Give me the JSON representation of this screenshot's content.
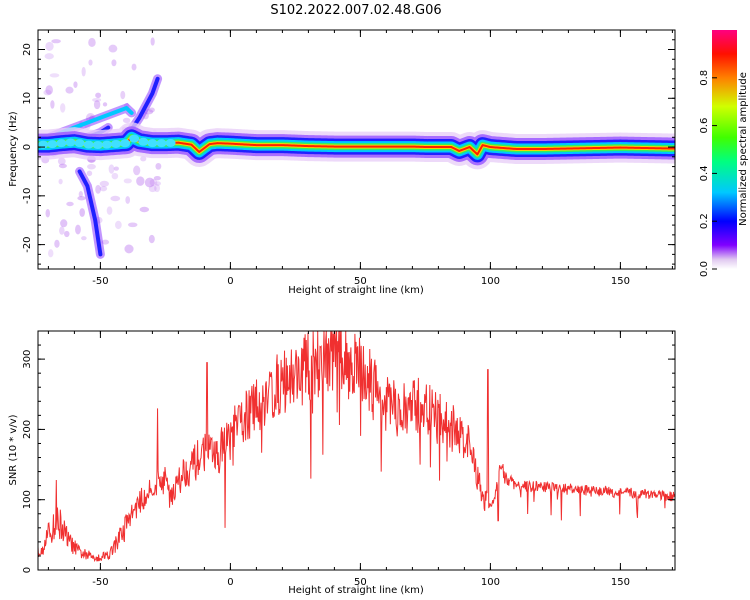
{
  "title": "S102.2022.007.02.48.G06",
  "chart_data": [
    {
      "type": "heatmap",
      "xlabel": "Height of straight line (km)",
      "ylabel": "Frequency (Hz)",
      "xlim": [
        -74,
        171
      ],
      "ylim": [
        -25,
        24
      ],
      "xticks": [
        -50,
        0,
        50,
        100,
        150
      ],
      "yticks": [
        -20,
        -10,
        0,
        10,
        20
      ],
      "colorbar": {
        "label": "Normalized spectral amplitude",
        "ticks": [
          "0.0",
          "0.2",
          "0.4",
          "0.6",
          "0.8"
        ],
        "range": [
          0,
          1
        ]
      },
      "ridge": {
        "x": [
          -74,
          -70,
          -65,
          -60,
          -55,
          -50,
          -45,
          -40,
          -38,
          -35,
          -30,
          -25,
          -20,
          -15,
          -12,
          -8,
          -5,
          0,
          10,
          20,
          30,
          40,
          50,
          60,
          70,
          76,
          80,
          85,
          88,
          92,
          95,
          97,
          100,
          110,
          120,
          130,
          140,
          150,
          160,
          170
        ],
        "y": [
          0.5,
          0.5,
          0.8,
          1.0,
          0.5,
          0.4,
          0.6,
          0.8,
          2.0,
          1.2,
          0.8,
          0.8,
          0.9,
          0.5,
          -1.0,
          0.6,
          0.8,
          0.7,
          0.4,
          0.4,
          0.2,
          0.1,
          0.1,
          0.1,
          0.1,
          0.0,
          0.0,
          0.0,
          -0.8,
          0.0,
          -1.5,
          0.4,
          0.0,
          -0.4,
          -0.4,
          -0.3,
          -0.2,
          -0.1,
          -0.2,
          -0.3
        ]
      },
      "branches": [
        {
          "x": [
            -74,
            -65,
            -60,
            -55,
            -50,
            -45,
            -40,
            -38
          ],
          "y": [
            1,
            3,
            4,
            5,
            6,
            7,
            8,
            7
          ]
        },
        {
          "x": [
            -68,
            -60,
            -55,
            -50,
            -47
          ],
          "y": [
            -1,
            1,
            2,
            3,
            4
          ]
        },
        {
          "x": [
            -40,
            -35,
            -30,
            -28
          ],
          "y": [
            2,
            6,
            11,
            14
          ]
        },
        {
          "x": [
            -58,
            -55,
            -52,
            -50
          ],
          "y": [
            -5,
            -8,
            -15,
            -22
          ]
        }
      ]
    },
    {
      "type": "line",
      "xlabel": "Height of straight line (km)",
      "ylabel": "SNR (10 * v/v)",
      "xlim": [
        -74,
        171
      ],
      "ylim": [
        0,
        340
      ],
      "xticks": [
        -50,
        0,
        50,
        100,
        150
      ],
      "yticks": [
        0,
        100,
        200,
        300
      ],
      "color": "#f03030",
      "envelope": {
        "x": [
          -74,
          -70,
          -66,
          -62,
          -58,
          -54,
          -50,
          -46,
          -42,
          -38,
          -34,
          -30,
          -26,
          -22,
          -18,
          -14,
          -10,
          -6,
          -2,
          2,
          6,
          10,
          14,
          18,
          22,
          26,
          30,
          34,
          38,
          42,
          46,
          50,
          54,
          58,
          62,
          66,
          70,
          74,
          78,
          82,
          86,
          90,
          94,
          96,
          98,
          100,
          102,
          104,
          106,
          110,
          120,
          130,
          140,
          150,
          160,
          170
        ],
        "y": [
          25,
          50,
          70,
          40,
          25,
          20,
          18,
          25,
          50,
          80,
          100,
          120,
          130,
          110,
          140,
          150,
          170,
          160,
          180,
          200,
          220,
          230,
          250,
          260,
          270,
          280,
          290,
          300,
          310,
          300,
          295,
          285,
          270,
          240,
          230,
          225,
          230,
          235,
          220,
          210,
          200,
          190,
          150,
          120,
          100,
          90,
          110,
          150,
          130,
          120,
          118,
          115,
          112,
          110,
          108,
          105
        ]
      },
      "spikes": [
        {
          "x": -67,
          "y": 128
        },
        {
          "x": -28,
          "y": 230
        },
        {
          "x": -9,
          "y": 295
        },
        {
          "x": -2,
          "y": 60
        },
        {
          "x": 31,
          "y": 130
        },
        {
          "x": 40,
          "y": 340
        },
        {
          "x": 58,
          "y": 140
        },
        {
          "x": 73,
          "y": 150
        },
        {
          "x": 99,
          "y": 285
        },
        {
          "x": 103,
          "y": 70
        }
      ]
    }
  ]
}
